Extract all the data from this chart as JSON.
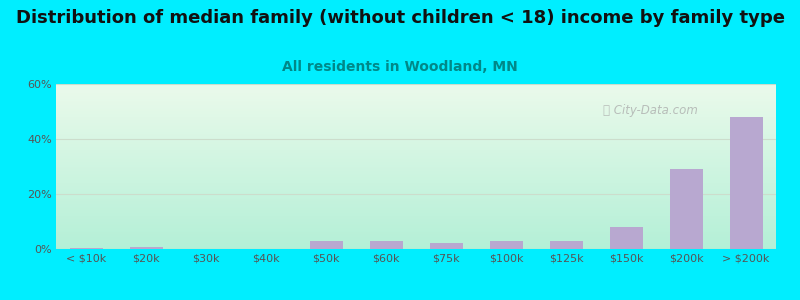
{
  "title": "Distribution of median family (without children < 18) income by family type",
  "subtitle": "All residents in Woodland, MN",
  "categories": [
    "< $10k",
    "$20k",
    "$30k",
    "$40k",
    "$50k",
    "$60k",
    "$75k",
    "$100k",
    "$125k",
    "$150k",
    "$200k",
    "> $200k"
  ],
  "values": [
    0.5,
    0.8,
    0.0,
    0.0,
    3.0,
    3.0,
    2.2,
    3.0,
    2.8,
    8.0,
    29.0,
    48.0
  ],
  "bar_color": "#b8a8d0",
  "ylim": [
    0,
    60
  ],
  "yticks": [
    0,
    20,
    40,
    60
  ],
  "ytick_labels": [
    "0%",
    "20%",
    "40%",
    "60%"
  ],
  "bg_outer": "#00eeff",
  "bg_plot_top_left": "#ddf5e8",
  "bg_plot_top_right": "#eaf8ec",
  "bg_plot_bottom_left": "#b8f0dc",
  "bg_plot_bottom_right": "#d0f5e8",
  "title_color": "#111111",
  "subtitle_color": "#008888",
  "tick_color": "#555555",
  "grid_color": "#ccddcc",
  "title_fontsize": 13,
  "subtitle_fontsize": 10
}
